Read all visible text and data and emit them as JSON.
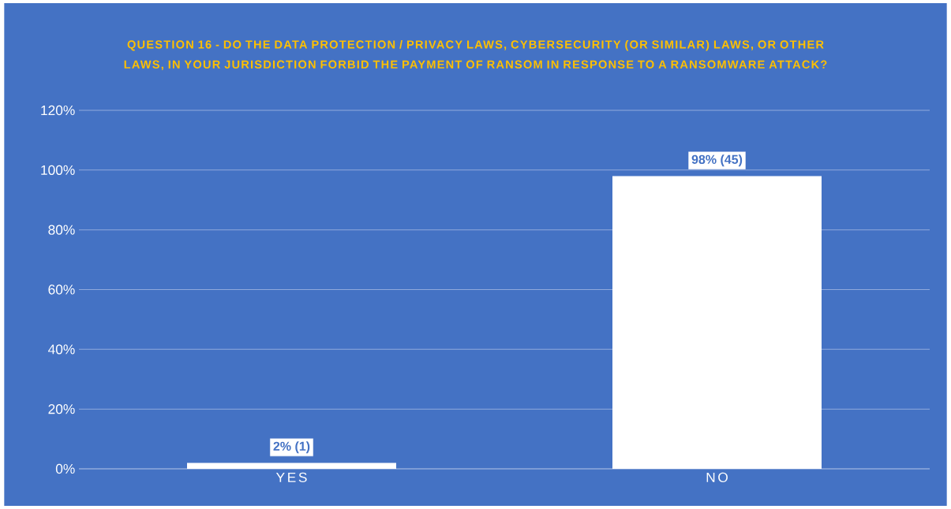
{
  "chart_data": {
    "type": "bar",
    "title": "QUESTION 16 - DO THE DATA PROTECTION / PRIVACY LAWS, CYBERSECURITY (OR SIMILAR) LAWS, OR OTHER LAWS, IN YOUR JURISDICTION FORBID THE PAYMENT OF RANSOM IN RESPONSE TO A RANSOMWARE ATTACK?",
    "categories": [
      "YES",
      "NO"
    ],
    "values": [
      2,
      98
    ],
    "value_labels": [
      "2% (1)",
      "98% (45)"
    ],
    "color": "#ffffff",
    "ylim": [
      0,
      120
    ],
    "yticks": [
      {
        "value": 0,
        "label": "0%"
      },
      {
        "value": 20,
        "label": "20%"
      },
      {
        "value": 40,
        "label": "40%"
      },
      {
        "value": 60,
        "label": "60%"
      },
      {
        "value": 80,
        "label": "80%"
      },
      {
        "value": 100,
        "label": "100%"
      },
      {
        "value": 120,
        "label": "120%"
      }
    ],
    "grid": "y"
  }
}
